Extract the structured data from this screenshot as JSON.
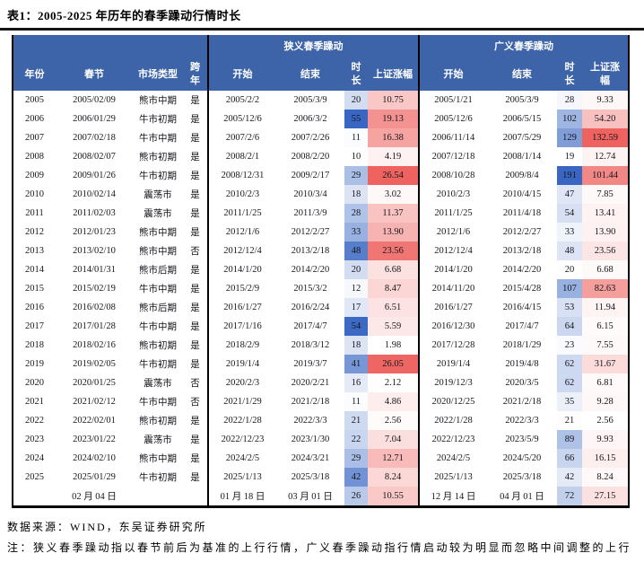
{
  "title": "表1：2005-2025 年历年的春季躁动行情时长",
  "colors": {
    "header_bg": "#3D64A8",
    "duration_max": "#3866C2",
    "gain_max": "#EE6360",
    "rule_black": "#141414"
  },
  "table": {
    "group_headers": [
      "狭义春季躁动",
      "广义春季躁动"
    ],
    "columns": [
      "年份",
      "春节",
      "市场类型",
      "跨年",
      "开始",
      "结束",
      "时长",
      "上证涨幅",
      "开始",
      "结束",
      "时长",
      "上证涨幅"
    ],
    "rows": [
      [
        "2005",
        "2005/02/09",
        "熊市中期",
        "是",
        "2005/2/2",
        "2005/3/9",
        "20",
        "10.75",
        "2005/1/21",
        "2005/3/9",
        "28",
        "9.33"
      ],
      [
        "2006",
        "2006/01/29",
        "牛市初期",
        "是",
        "2005/12/6",
        "2006/3/2",
        "55",
        "19.13",
        "2005/12/6",
        "2006/5/15",
        "102",
        "54.20"
      ],
      [
        "2007",
        "2007/02/18",
        "牛市中期",
        "是",
        "2007/2/6",
        "2007/2/26",
        "11",
        "16.38",
        "2006/11/14",
        "2007/5/29",
        "129",
        "132.59"
      ],
      [
        "2008",
        "2008/02/07",
        "熊市初期",
        "是",
        "2008/2/1",
        "2008/2/20",
        "10",
        "4.19",
        "2007/12/18",
        "2008/1/14",
        "19",
        "12.74"
      ],
      [
        "2009",
        "2009/01/26",
        "牛市初期",
        "是",
        "2008/12/31",
        "2009/2/17",
        "29",
        "26.54",
        "2008/10/28",
        "2009/8/4",
        "191",
        "101.44"
      ],
      [
        "2010",
        "2010/02/14",
        "震荡市",
        "是",
        "2010/2/3",
        "2010/3/4",
        "18",
        "3.02",
        "2010/2/3",
        "2010/4/15",
        "47",
        "7.85"
      ],
      [
        "2011",
        "2011/02/03",
        "震荡市",
        "是",
        "2011/1/25",
        "2011/3/9",
        "28",
        "11.37",
        "2011/1/25",
        "2011/4/18",
        "54",
        "13.41"
      ],
      [
        "2012",
        "2012/01/23",
        "熊市中期",
        "是",
        "2012/1/6",
        "2012/2/27",
        "33",
        "13.90",
        "2012/1/6",
        "2012/2/27",
        "33",
        "13.90"
      ],
      [
        "2013",
        "2013/02/10",
        "熊市中期",
        "否",
        "2012/12/4",
        "2013/2/18",
        "48",
        "23.56",
        "2012/12/4",
        "2013/2/18",
        "48",
        "23.56"
      ],
      [
        "2014",
        "2014/01/31",
        "熊市后期",
        "是",
        "2014/1/20",
        "2014/2/20",
        "20",
        "6.68",
        "2014/1/20",
        "2014/2/20",
        "20",
        "6.68"
      ],
      [
        "2015",
        "2015/02/19",
        "牛市中期",
        "是",
        "2015/2/9",
        "2015/3/2",
        "12",
        "8.47",
        "2014/11/20",
        "2015/4/28",
        "107",
        "82.63"
      ],
      [
        "2016",
        "2016/02/08",
        "熊市后期",
        "是",
        "2016/1/27",
        "2016/2/24",
        "17",
        "6.51",
        "2016/1/27",
        "2016/4/15",
        "53",
        "11.94"
      ],
      [
        "2017",
        "2017/01/28",
        "牛市中期",
        "是",
        "2017/1/16",
        "2017/4/7",
        "54",
        "5.59",
        "2016/12/30",
        "2017/4/7",
        "64",
        "6.15"
      ],
      [
        "2018",
        "2018/02/16",
        "熊市初期",
        "是",
        "2018/2/9",
        "2018/3/12",
        "18",
        "1.98",
        "2017/12/28",
        "2018/1/29",
        "23",
        "7.55"
      ],
      [
        "2019",
        "2019/02/05",
        "牛市初期",
        "是",
        "2019/1/4",
        "2019/3/7",
        "41",
        "26.05",
        "2019/1/4",
        "2019/4/8",
        "62",
        "31.67"
      ],
      [
        "2020",
        "2020/01/25",
        "震荡市",
        "否",
        "2020/2/3",
        "2020/2/21",
        "16",
        "2.12",
        "2019/12/3",
        "2020/3/5",
        "62",
        "6.81"
      ],
      [
        "2021",
        "2021/02/12",
        "牛市中期",
        "否",
        "2021/1/29",
        "2021/2/18",
        "11",
        "4.86",
        "2020/12/25",
        "2021/2/18",
        "35",
        "9.28"
      ],
      [
        "2022",
        "2022/02/01",
        "熊市初期",
        "是",
        "2022/1/28",
        "2022/3/3",
        "21",
        "2.56",
        "2022/1/28",
        "2022/3/3",
        "21",
        "2.56"
      ],
      [
        "2023",
        "2023/01/22",
        "震荡市",
        "是",
        "2022/12/23",
        "2023/1/30",
        "22",
        "7.04",
        "2022/12/23",
        "2023/5/9",
        "89",
        "9.93"
      ],
      [
        "2024",
        "2024/02/10",
        "熊市中期",
        "是",
        "2024/2/5",
        "2024/3/21",
        "29",
        "12.71",
        "2024/2/5",
        "2024/5/20",
        "66",
        "16.15"
      ],
      [
        "2025",
        "2025/01/29",
        "牛市初期",
        "是",
        "2025/1/13",
        "2025/3/18",
        "42",
        "8.24",
        "2025/1/13",
        "2025/3/18",
        "42",
        "8.24"
      ]
    ],
    "summary_row": [
      "",
      "02 月 04 日",
      "",
      "",
      "01 月 18 日",
      "03 月 01 日",
      "26",
      "10.55",
      "12 月 14 日",
      "04 月 01 日",
      "72",
      "27.15"
    ]
  },
  "footer": {
    "source": "数据来源：WIND，东吴证券研究所",
    "note": "注：狭义春季躁动指以春节前后为基准的上行行情，广义春季躁动指行情启动较为明显而忽略中间调整的上行行情"
  }
}
